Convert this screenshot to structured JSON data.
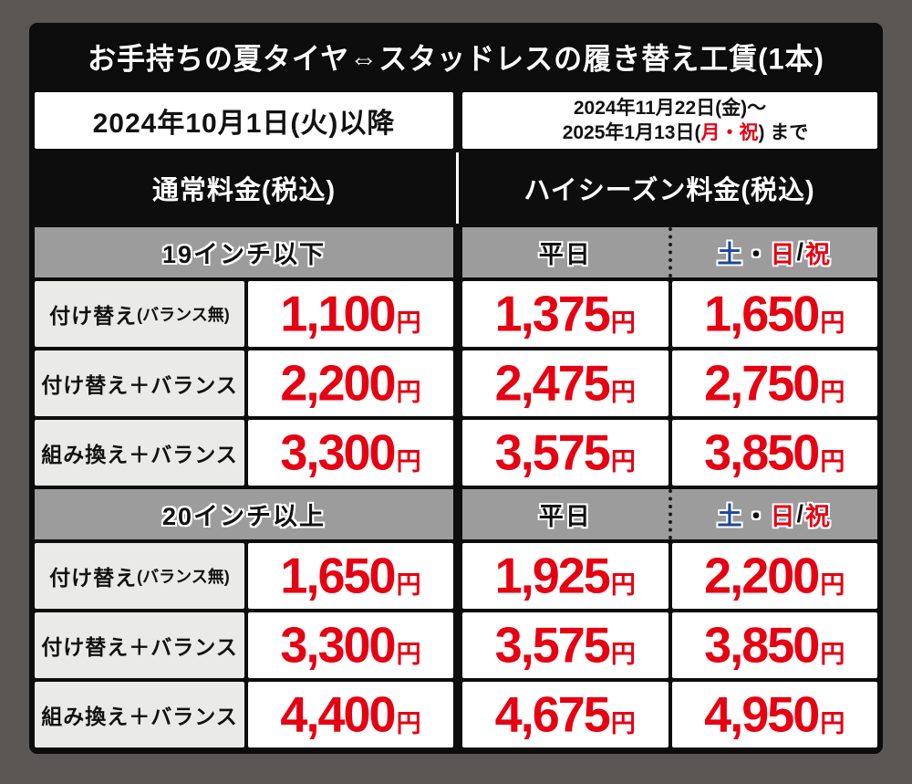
{
  "title": "お手持ちの夏タイヤ⇔スタッドレスの履き替え工賃(1本)",
  "period": {
    "normal_since": "2024年10月1日(火)以降",
    "high_line1": "2024年11月22日(金)～",
    "high_line2_pre": "2025年1月13日(",
    "high_line2_red": "月・祝",
    "high_line2_post": ") まで"
  },
  "columns": {
    "normal": "通常料金(税込)",
    "high": "ハイシーズン料金(税込)",
    "weekday": "平日",
    "weekend": {
      "sat": "土",
      "dot": "・",
      "sun": "日",
      "slash": "/",
      "holiday": "祝"
    }
  },
  "unit": "円",
  "colors": {
    "price_red": "#e60012",
    "saturday_blue": "#1e4796",
    "holiday_red": "#e60012",
    "gray_header": "#9c9c9c",
    "page_background": "#5a5755"
  },
  "sections": [
    {
      "size": "19インチ以下",
      "rows": [
        {
          "label": "付け替え",
          "note": "(バランス無)",
          "normal": "1,100",
          "weekday": "1,375",
          "weekend": "1,650"
        },
        {
          "label": "付け替え＋バランス",
          "note": "",
          "normal": "2,200",
          "weekday": "2,475",
          "weekend": "2,750"
        },
        {
          "label": "組み換え＋バランス",
          "note": "",
          "normal": "3,300",
          "weekday": "3,575",
          "weekend": "3,850"
        }
      ]
    },
    {
      "size": "20インチ以上",
      "rows": [
        {
          "label": "付け替え",
          "note": "(バランス無)",
          "normal": "1,650",
          "weekday": "1,925",
          "weekend": "2,200"
        },
        {
          "label": "付け替え＋バランス",
          "note": "",
          "normal": "3,300",
          "weekday": "3,575",
          "weekend": "3,850"
        },
        {
          "label": "組み換え＋バランス",
          "note": "",
          "normal": "4,400",
          "weekday": "4,675",
          "weekend": "4,950"
        }
      ]
    }
  ]
}
